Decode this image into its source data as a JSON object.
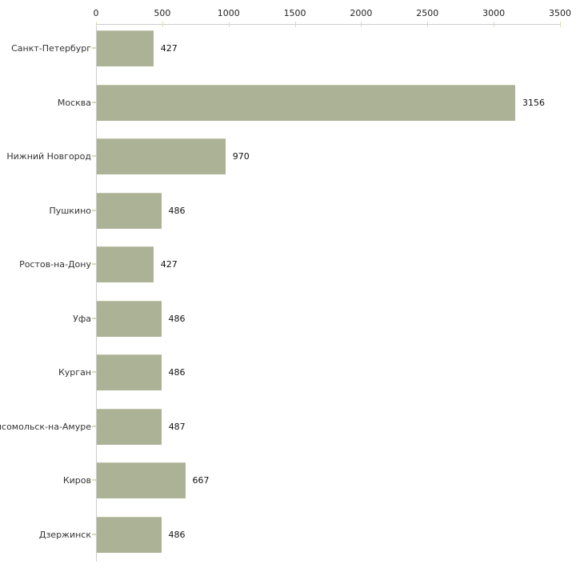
{
  "chart_data": {
    "type": "bar",
    "orientation": "horizontal",
    "title": "",
    "categories": [
      "Санкт-Петербург",
      "Москва",
      "Нижний Новгород",
      "Пушкино",
      "Ростов-на-Дону",
      "Уфа",
      "Курган",
      "Комсомольск-на-Амуре",
      "Киров",
      "Дзержинск"
    ],
    "values": [
      427,
      3156,
      970,
      486,
      427,
      486,
      486,
      487,
      667,
      486
    ],
    "x_tick_values": [
      0,
      500,
      1000,
      1500,
      2000,
      2500,
      3000,
      3500
    ],
    "x_tick_labels": [
      "0",
      "500",
      "1000",
      "1500",
      "2000",
      "2500",
      "3000",
      "3500"
    ],
    "xlim": [
      0,
      3500
    ],
    "grid": false,
    "legend": false,
    "value_labels_shown": true,
    "colors": {
      "background": "#ffffff",
      "bar_fill": "#acb296",
      "bar_top_edge": "#c2c7ad",
      "axis_line": "#cccccc",
      "tick_mark": "#d8dabd",
      "category_text": "#333333",
      "value_text": "#111111"
    }
  }
}
